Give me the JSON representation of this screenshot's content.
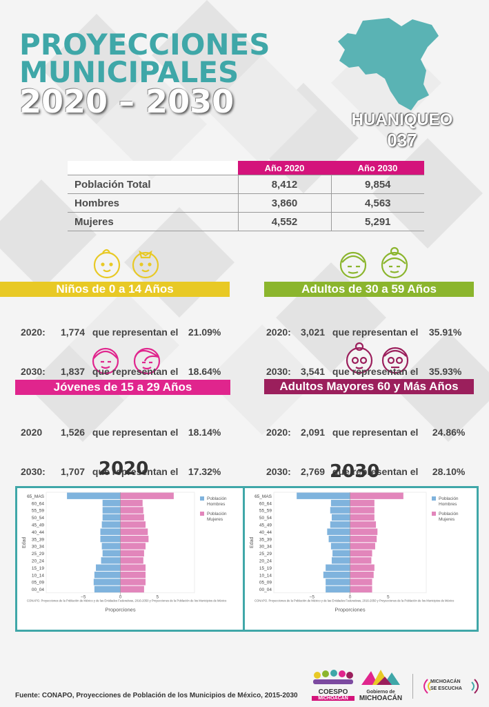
{
  "header": {
    "line1": "PROYECCIONES",
    "line2": "MUNICIPALES",
    "line3": "2020 – 2030"
  },
  "municipio": {
    "name": "HUANIQUEO",
    "code": "037"
  },
  "table": {
    "headers": [
      "",
      "Año 2020",
      "Año 2030"
    ],
    "rows": [
      {
        "label": "Población Total",
        "y2020": "8,412",
        "y2030": "9,854"
      },
      {
        "label": "Hombres",
        "y2020": "3,860",
        "y2030": "4,563"
      },
      {
        "label": "Mujeres",
        "y2020": "4,552",
        "y2030": "5,291"
      }
    ]
  },
  "groups": [
    {
      "title": "Niños de 0 a 14 Años",
      "color": "#e8c925",
      "l1": {
        "year": "2020:",
        "count": "1,774",
        "text": "que representan el",
        "pct": "21.09%"
      },
      "l2": {
        "year": "2030:",
        "count": "1,837",
        "text": "que representan el",
        "pct": "18.64%"
      }
    },
    {
      "title": "Adultos de 30 a 59 Años",
      "color": "#8bb52d",
      "l1": {
        "year": "2020:",
        "count": "3,021",
        "text": "que representan el",
        "pct": "35.91%"
      },
      "l2": {
        "year": "2030:",
        "count": "3,541",
        "text": "que representan el",
        "pct": "35.93%"
      }
    },
    {
      "title": "Jóvenes de 15 a 29 Años",
      "color": "#e0258d",
      "l1": {
        "year": "2020",
        "count": "1,526",
        "text": "que representan el",
        "pct": "18.14%"
      },
      "l2": {
        "year": "2030:",
        "count": "1,707",
        "text": "que representan el",
        "pct": "17.32%"
      }
    },
    {
      "title": "Adultos Mayores  60 y Más Años",
      "color": "#9b1f5c",
      "l1": {
        "year": "2020:",
        "count": "2,091",
        "text": "que representan el",
        "pct": "24.86%"
      },
      "l2": {
        "year": "2030:",
        "count": "2,769",
        "text": "que representan el",
        "pct": "28.10%"
      }
    }
  ],
  "chart_labels": {
    "year_left": "2020",
    "year_right": "2030"
  },
  "chart_data": [
    {
      "type": "bar",
      "subtype": "population-pyramid",
      "year": "2020",
      "categories": [
        "65_MAS",
        "60_64",
        "55_59",
        "50_54",
        "45_49",
        "40_44",
        "35_39",
        "30_34",
        "25_29",
        "20_24",
        "15_19",
        "10_14",
        "05_09",
        "00_04"
      ],
      "series": [
        {
          "name": "Población Hombres",
          "color": "#7fb3dd",
          "values": [
            -7.2,
            -2.4,
            -2.4,
            -2.4,
            -2.5,
            -2.7,
            -2.7,
            -2.5,
            -2.4,
            -2.6,
            -3.3,
            -3.5,
            -3.6,
            -3.5
          ]
        },
        {
          "name": "Población Mujeres",
          "color": "#e286bb",
          "values": [
            7.2,
            3.0,
            3.1,
            3.2,
            3.4,
            3.7,
            3.8,
            3.4,
            3.2,
            3.1,
            3.4,
            3.4,
            3.4,
            3.2
          ]
        }
      ],
      "xlabel": "Proporciones",
      "ylabel": "Edad",
      "xticks": [
        "−5",
        "0",
        "5"
      ],
      "xlim": [
        -10,
        10
      ],
      "source": "CONAPO. Proyecciones de la Población de México y de las Entidades Federativas, 2016-2050 y Proyecciones de la Población de los Municipios de México",
      "legend": "top-right"
    },
    {
      "type": "bar",
      "subtype": "population-pyramid",
      "year": "2030",
      "categories": [
        "65_MAS",
        "60_64",
        "55_59",
        "50_54",
        "45_49",
        "40_44",
        "35_39",
        "30_34",
        "25_29",
        "20_24",
        "15_19",
        "10_14",
        "05_09",
        "00_04"
      ],
      "series": [
        {
          "name": "Población Hombres",
          "color": "#7fb3dd",
          "values": [
            -7.0,
            -2.5,
            -2.6,
            -2.4,
            -2.6,
            -3.0,
            -2.8,
            -2.5,
            -2.3,
            -2.4,
            -3.2,
            -3.5,
            -3.2,
            -3.2
          ]
        },
        {
          "name": "Población Mujeres",
          "color": "#e286bb",
          "values": [
            7.0,
            3.2,
            3.2,
            3.2,
            3.4,
            3.6,
            3.5,
            3.3,
            2.9,
            2.8,
            3.2,
            3.1,
            2.9,
            2.9
          ]
        }
      ],
      "xlabel": "Proporciones",
      "ylabel": "Edad",
      "xticks": [
        "−5",
        "0",
        "5"
      ],
      "xlim": [
        -10,
        10
      ],
      "source": "CONAPO. Proyecciones de la Población de México y de las Entidades Federativas, 2016-2050 y Proyecciones de la Población de los Municipios de México",
      "legend": "top-right"
    }
  ],
  "footer": {
    "source": "Fuente: CONAPO, Proyecciones de Población de los Municipios de México, 2015-2030"
  },
  "logos": {
    "coespo": "COESPO",
    "coespo_sub": "MICHOACÁN",
    "gob_line1": "Gobierno de",
    "gob_line2": "MICHOACÁN",
    "escucha_line1": "MICHOACÁN",
    "escucha_line2": "SE ESCUCHA"
  },
  "colors": {
    "teal": "#3fa7a8",
    "magenta": "#d4137b"
  }
}
